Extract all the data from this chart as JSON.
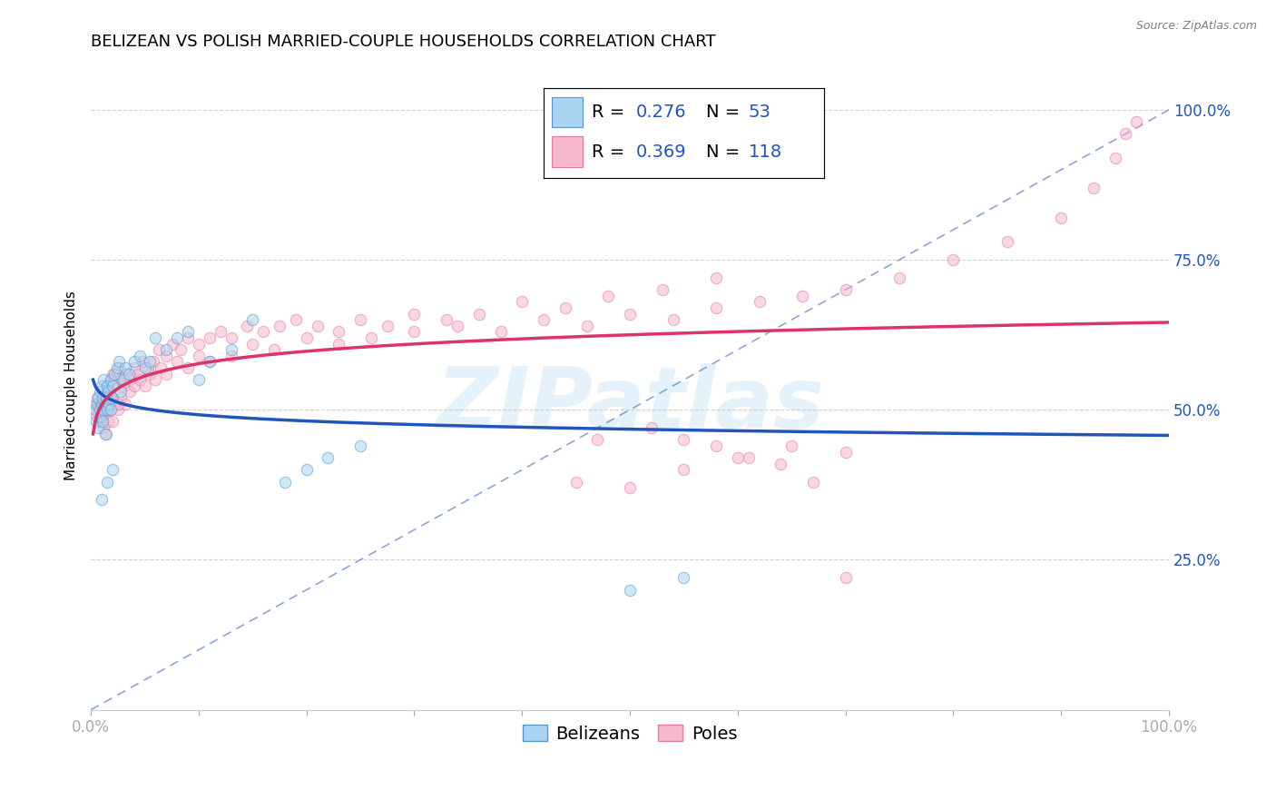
{
  "title": "BELIZEAN VS POLISH MARRIED-COUPLE HOUSEHOLDS CORRELATION CHART",
  "source_text": "Source: ZipAtlas.com",
  "ylabel": "Married-couple Households",
  "legend_labels": [
    "Belizeans",
    "Poles"
  ],
  "blue_R": 0.276,
  "blue_N": 53,
  "pink_R": 0.369,
  "pink_N": 118,
  "blue_scatter_color": "#aad4f0",
  "pink_scatter_color": "#f5b8cc",
  "blue_edge_color": "#5599cc",
  "pink_edge_color": "#e878a8",
  "blue_line_color": "#2255bb",
  "pink_line_color": "#dd3366",
  "diag_color": "#6688cc",
  "watermark_color": "#aad4f0",
  "watermark_text": "ZIPatlas",
  "grid_color": "#cccccc",
  "tick_color": "#2255bb",
  "background_color": "#ffffff",
  "title_fontsize": 13,
  "label_fontsize": 11,
  "tick_fontsize": 12,
  "legend_fontsize": 14,
  "source_fontsize": 9,
  "marker_size": 80,
  "scatter_alpha": 0.55,
  "xlim": [
    0.0,
    1.0
  ],
  "ylim_min": 0.0,
  "ylim_max": 1.08,
  "ytick_vals": [
    0.25,
    0.5,
    0.75,
    1.0
  ],
  "ytick_labels": [
    "25.0%",
    "50.0%",
    "75.0%",
    "100.0%"
  ],
  "xtick_vals": [
    0.0,
    0.1,
    0.2,
    0.3,
    0.4,
    0.5,
    0.6,
    0.7,
    0.8,
    0.9,
    1.0
  ],
  "xtick_show": [
    0.0,
    1.0
  ],
  "log_fit": true,
  "blue_x_data": [
    0.004,
    0.005,
    0.006,
    0.007,
    0.007,
    0.008,
    0.008,
    0.009,
    0.01,
    0.01,
    0.011,
    0.011,
    0.012,
    0.012,
    0.013,
    0.013,
    0.014,
    0.015,
    0.015,
    0.016,
    0.017,
    0.018,
    0.018,
    0.019,
    0.02,
    0.022,
    0.024,
    0.026,
    0.028,
    0.03,
    0.032,
    0.035,
    0.04,
    0.045,
    0.05,
    0.055,
    0.06,
    0.07,
    0.08,
    0.09,
    0.1,
    0.11,
    0.13,
    0.15,
    0.18,
    0.2,
    0.22,
    0.25,
    0.5,
    0.55,
    0.01,
    0.015,
    0.02
  ],
  "blue_y_data": [
    0.5,
    0.48,
    0.51,
    0.52,
    0.47,
    0.5,
    0.53,
    0.49,
    0.51,
    0.54,
    0.52,
    0.48,
    0.5,
    0.55,
    0.51,
    0.46,
    0.52,
    0.5,
    0.54,
    0.53,
    0.51,
    0.5,
    0.55,
    0.52,
    0.54,
    0.56,
    0.57,
    0.58,
    0.53,
    0.55,
    0.57,
    0.56,
    0.58,
    0.59,
    0.57,
    0.58,
    0.62,
    0.6,
    0.62,
    0.63,
    0.55,
    0.58,
    0.6,
    0.65,
    0.38,
    0.4,
    0.42,
    0.44,
    0.2,
    0.22,
    0.35,
    0.38,
    0.4
  ],
  "pink_x_data": [
    0.004,
    0.005,
    0.006,
    0.007,
    0.008,
    0.009,
    0.01,
    0.011,
    0.012,
    0.013,
    0.014,
    0.015,
    0.016,
    0.017,
    0.018,
    0.02,
    0.022,
    0.024,
    0.026,
    0.028,
    0.03,
    0.033,
    0.036,
    0.04,
    0.044,
    0.048,
    0.053,
    0.058,
    0.063,
    0.07,
    0.076,
    0.083,
    0.09,
    0.1,
    0.11,
    0.12,
    0.13,
    0.145,
    0.16,
    0.175,
    0.19,
    0.21,
    0.23,
    0.25,
    0.275,
    0.3,
    0.33,
    0.36,
    0.4,
    0.44,
    0.48,
    0.53,
    0.58,
    0.01,
    0.012,
    0.014,
    0.016,
    0.018,
    0.02,
    0.022,
    0.025,
    0.028,
    0.032,
    0.036,
    0.04,
    0.045,
    0.05,
    0.055,
    0.06,
    0.065,
    0.07,
    0.08,
    0.09,
    0.1,
    0.11,
    0.13,
    0.15,
    0.17,
    0.2,
    0.23,
    0.26,
    0.3,
    0.34,
    0.38,
    0.42,
    0.46,
    0.5,
    0.54,
    0.58,
    0.62,
    0.66,
    0.7,
    0.75,
    0.8,
    0.85,
    0.9,
    0.93,
    0.95,
    0.96,
    0.97,
    0.45,
    0.5,
    0.55,
    0.6,
    0.65,
    0.7,
    0.01,
    0.015,
    0.02,
    0.025,
    0.47,
    0.52,
    0.55,
    0.58,
    0.61,
    0.64,
    0.67,
    0.7
  ],
  "pink_y_data": [
    0.51,
    0.49,
    0.52,
    0.5,
    0.48,
    0.51,
    0.53,
    0.49,
    0.52,
    0.51,
    0.5,
    0.53,
    0.54,
    0.52,
    0.55,
    0.56,
    0.54,
    0.56,
    0.57,
    0.55,
    0.54,
    0.56,
    0.55,
    0.57,
    0.56,
    0.58,
    0.57,
    0.58,
    0.6,
    0.59,
    0.61,
    0.6,
    0.62,
    0.61,
    0.62,
    0.63,
    0.62,
    0.64,
    0.63,
    0.64,
    0.65,
    0.64,
    0.63,
    0.65,
    0.64,
    0.66,
    0.65,
    0.66,
    0.68,
    0.67,
    0.69,
    0.7,
    0.72,
    0.48,
    0.47,
    0.46,
    0.48,
    0.5,
    0.52,
    0.51,
    0.5,
    0.52,
    0.51,
    0.53,
    0.54,
    0.55,
    0.54,
    0.56,
    0.55,
    0.57,
    0.56,
    0.58,
    0.57,
    0.59,
    0.58,
    0.59,
    0.61,
    0.6,
    0.62,
    0.61,
    0.62,
    0.63,
    0.64,
    0.63,
    0.65,
    0.64,
    0.66,
    0.65,
    0.67,
    0.68,
    0.69,
    0.7,
    0.72,
    0.75,
    0.78,
    0.82,
    0.87,
    0.92,
    0.96,
    0.98,
    0.38,
    0.37,
    0.4,
    0.42,
    0.44,
    0.43,
    0.5,
    0.52,
    0.48,
    0.51,
    0.45,
    0.47,
    0.45,
    0.44,
    0.42,
    0.41,
    0.38,
    0.22
  ]
}
